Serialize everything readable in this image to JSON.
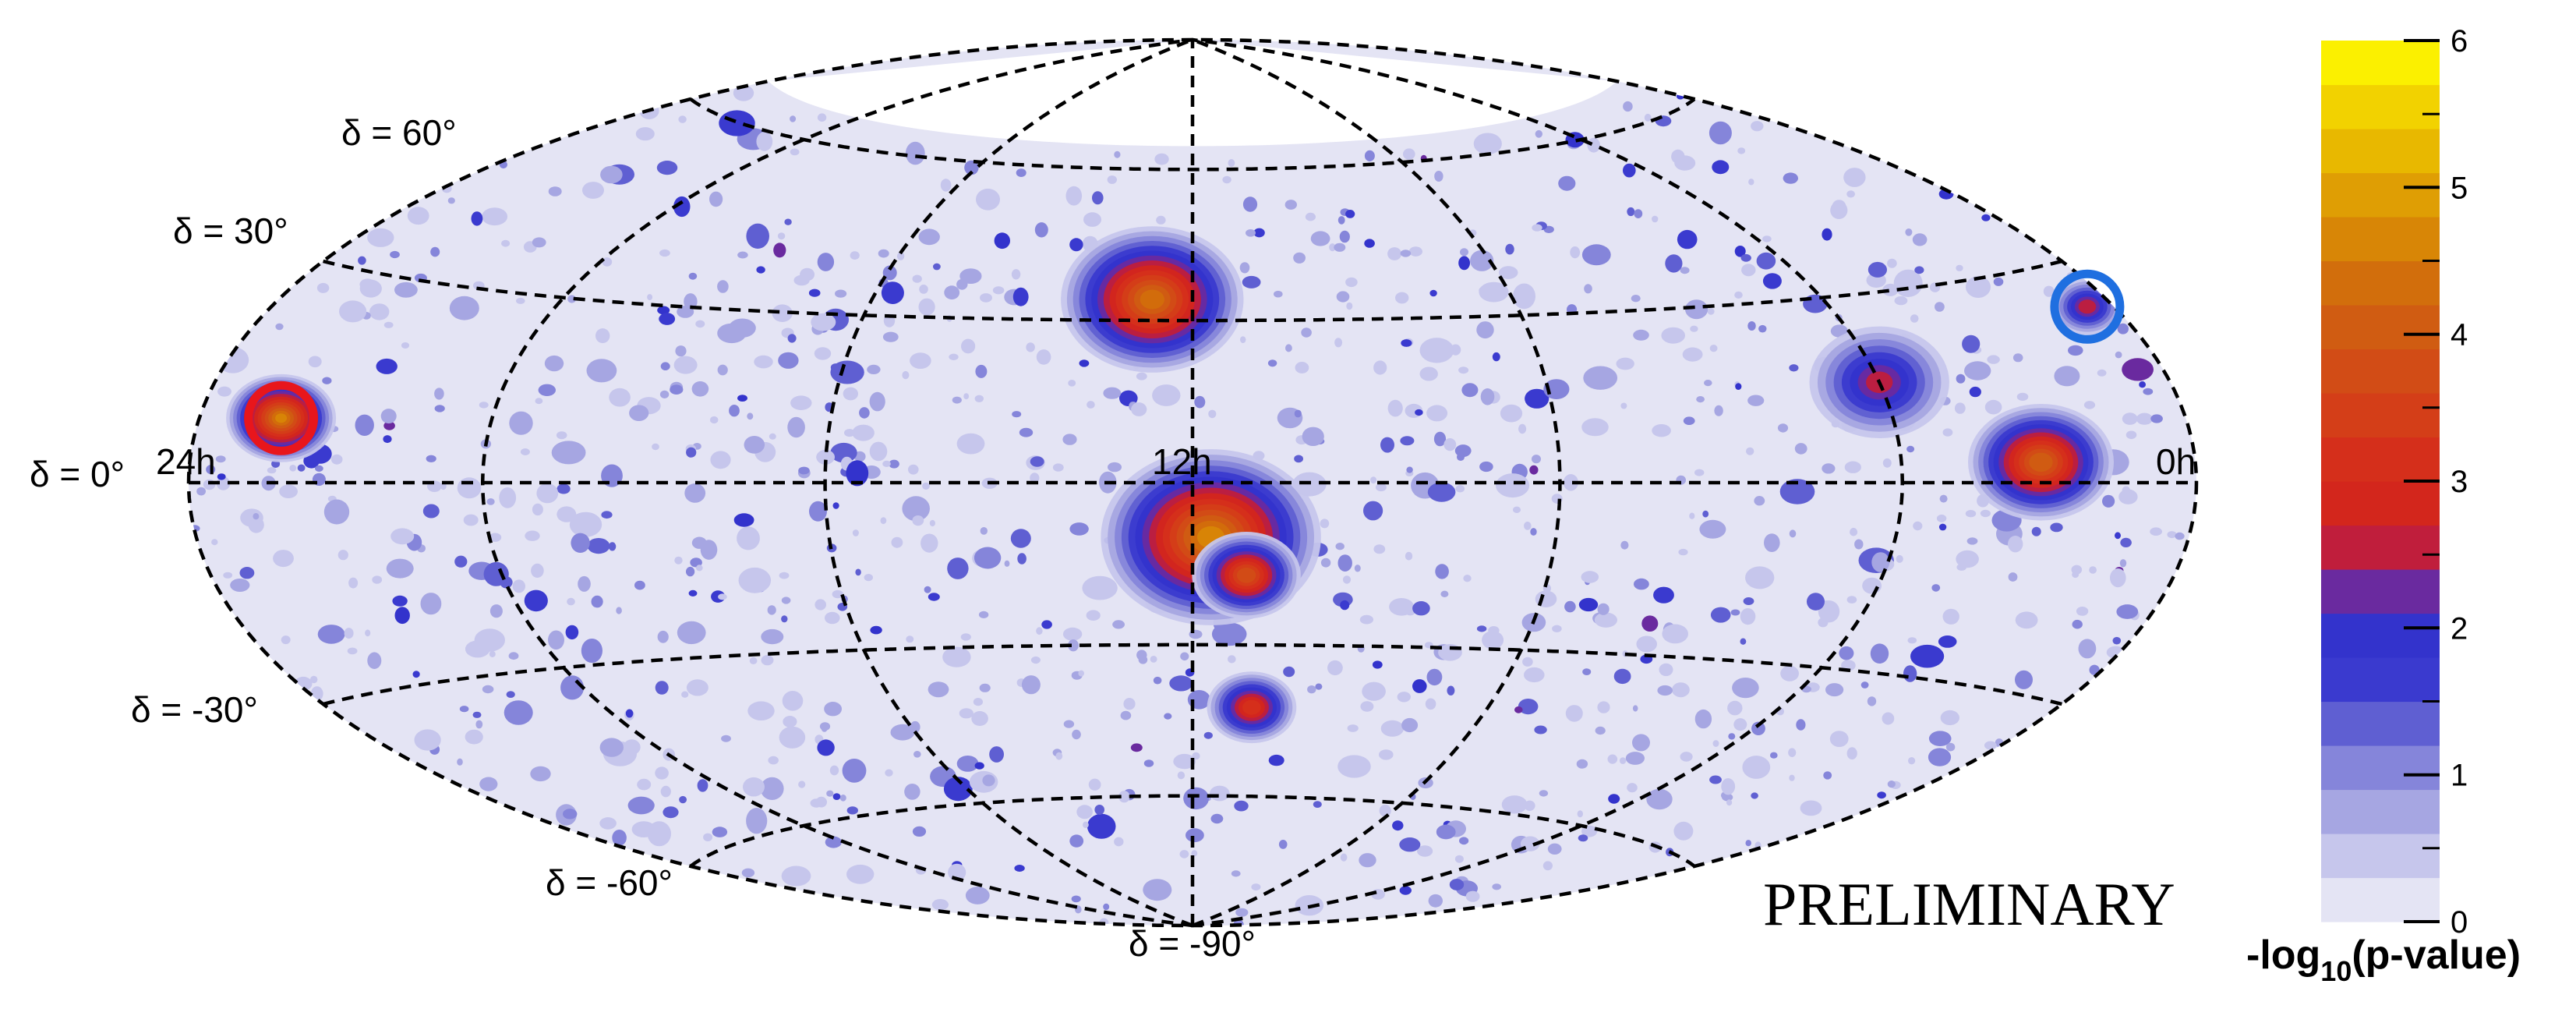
{
  "chart_data": {
    "type": "heatmap",
    "projection": "hammer-aitoff",
    "coordinate_system": "equatorial",
    "ra_labels": [
      "24h",
      "12h",
      "0h"
    ],
    "dec_labels": [
      "δ = 60°",
      "δ = 30°",
      "δ = 0°",
      "δ = -30°",
      "δ = -60°",
      "δ = -90°"
    ],
    "graticule_ra_hours": [
      0,
      4,
      8,
      12,
      16,
      20,
      24
    ],
    "graticule_dec_degrees": [
      -60,
      -30,
      0,
      30,
      60
    ],
    "sky_coverage_dec_max": 65,
    "watermark": "PRELIMINARY",
    "colorbar": {
      "title": "-log10(p-value)",
      "title_base": "-log",
      "title_sub": "10",
      "title_rest": "(p-value)",
      "range": [
        0,
        6
      ],
      "ticks": [
        "0",
        "1",
        "2",
        "3",
        "4",
        "5",
        "6"
      ],
      "levels": [
        0,
        0.3,
        0.6,
        0.9,
        1.2,
        1.5,
        1.8,
        2.1,
        2.4,
        2.7,
        3.0,
        3.3,
        3.6,
        3.9,
        4.2,
        4.5,
        4.8,
        5.1,
        5.4,
        5.7
      ],
      "colors": [
        "#e4e4f4",
        "#c6c6ec",
        "#a6a6e2",
        "#8585da",
        "#5f5fd2",
        "#3a3acf",
        "#3333cc",
        "#6a2a9f",
        "#c01e3c",
        "#d3261c",
        "#d52f1b",
        "#d43e18",
        "#d24c16",
        "#d05c12",
        "#d26e0c",
        "#d88606",
        "#df9e04",
        "#e8b800",
        "#f2d200",
        "#fbf000"
      ]
    },
    "hotspots": [
      {
        "ra_h": 12.2,
        "dec": -10,
        "value": 4.6,
        "r": 6
      },
      {
        "ra_h": 11.5,
        "dec": 34,
        "value": 4.3,
        "r": 5
      },
      {
        "ra_h": 21.8,
        "dec": 3,
        "value": 4.1,
        "r": 4
      },
      {
        "ra_h": 1.2,
        "dec": 9,
        "value": 4.5,
        "r": 3
      },
      {
        "ra_h": 12.6,
        "dec": -17,
        "value": 3.8,
        "r": 3
      },
      {
        "ra_h": 12.8,
        "dec": -42,
        "value": 3.2,
        "r": 2.5
      },
      {
        "ra_h": 20.0,
        "dec": 16,
        "value": 2.4,
        "r": 4
      },
      {
        "ra_h": 23.6,
        "dec": 24,
        "value": 2.6,
        "r": 2
      }
    ],
    "markers": [
      {
        "ra_h": 1.2,
        "dec": 9,
        "color": "#e8161c"
      },
      {
        "ra_h": 23.6,
        "dec": 24,
        "color": "#1f6fe0"
      }
    ]
  }
}
